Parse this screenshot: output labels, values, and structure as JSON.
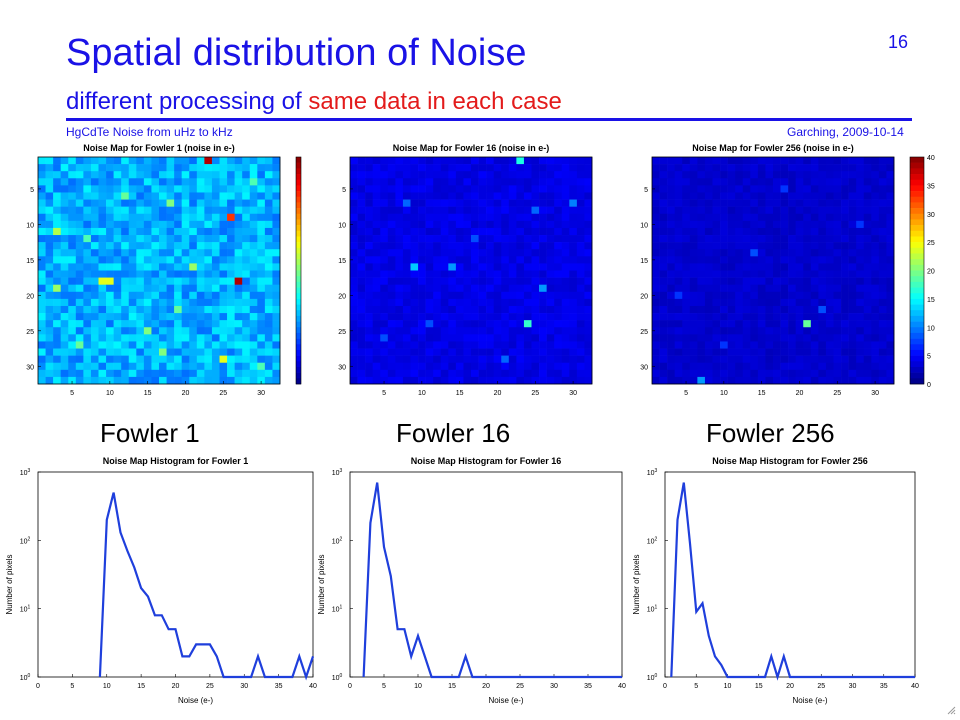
{
  "slide": {
    "title": "Spatial distribution of Noise",
    "subtitle_prefix": "different processing of ",
    "subtitle_highlight": "same data in each case",
    "footer_left": "HgCdTe Noise from uHz to kHz",
    "footer_right": "Garching, 2009-10-14",
    "page_number": "16",
    "panel_labels": [
      "Fowler 1",
      "Fowler 16",
      "Fowler 256"
    ],
    "colors": {
      "title": "#1a12e6",
      "highlight": "#e31b1b",
      "histogram_line": "#1f3fdc"
    }
  },
  "chart_data": [
    {
      "type": "heatmap",
      "title": "Noise Map for Fowler 1 (noise in e-)",
      "grid_size": [
        32,
        32
      ],
      "ytick_labels": [
        "5",
        "10",
        "15",
        "20",
        "25",
        "30"
      ],
      "xtick_labels": [
        "5",
        "10",
        "15",
        "20",
        "25",
        "30"
      ],
      "background_value": 12,
      "hot_pixels": [
        {
          "col": 23,
          "row": 1,
          "value": 38
        },
        {
          "col": 26,
          "row": 9,
          "value": 33
        },
        {
          "col": 27,
          "row": 18,
          "value": 38
        },
        {
          "col": 9,
          "row": 18,
          "value": 24
        },
        {
          "col": 10,
          "row": 18,
          "value": 24
        },
        {
          "col": 3,
          "row": 11,
          "value": 22
        },
        {
          "col": 3,
          "row": 19,
          "value": 21
        },
        {
          "col": 21,
          "row": 16,
          "value": 21
        },
        {
          "col": 25,
          "row": 29,
          "value": 24
        },
        {
          "col": 18,
          "row": 7,
          "value": 20
        },
        {
          "col": 15,
          "row": 25,
          "value": 20
        },
        {
          "col": 12,
          "row": 6,
          "value": 19
        },
        {
          "col": 29,
          "row": 4,
          "value": 18
        },
        {
          "col": 6,
          "row": 27,
          "value": 19
        },
        {
          "col": 30,
          "row": 30,
          "value": 18
        },
        {
          "col": 17,
          "row": 28,
          "value": 20
        },
        {
          "col": 7,
          "row": 12,
          "value": 18
        },
        {
          "col": 19,
          "row": 22,
          "value": 19
        }
      ],
      "colorbar_range": [
        0,
        40
      ]
    },
    {
      "type": "heatmap",
      "title": "Noise Map for Fowler 16 (noise in e-)",
      "grid_size": [
        32,
        32
      ],
      "ytick_labels": [
        "5",
        "10",
        "15",
        "20",
        "25",
        "30"
      ],
      "xtick_labels": [
        "5",
        "10",
        "15",
        "20",
        "25",
        "30"
      ],
      "background_value": 4,
      "hot_pixels": [
        {
          "col": 23,
          "row": 1,
          "value": 16
        },
        {
          "col": 9,
          "row": 16,
          "value": 13
        },
        {
          "col": 24,
          "row": 24,
          "value": 17
        },
        {
          "col": 26,
          "row": 19,
          "value": 11
        },
        {
          "col": 14,
          "row": 16,
          "value": 11
        },
        {
          "col": 30,
          "row": 7,
          "value": 10
        },
        {
          "col": 8,
          "row": 7,
          "value": 9
        },
        {
          "col": 21,
          "row": 29,
          "value": 9
        },
        {
          "col": 5,
          "row": 26,
          "value": 8
        },
        {
          "col": 17,
          "row": 12,
          "value": 8
        },
        {
          "col": 25,
          "row": 8,
          "value": 9
        },
        {
          "col": 11,
          "row": 24,
          "value": 8
        }
      ],
      "colorbar_range": [
        0,
        40
      ]
    },
    {
      "type": "heatmap",
      "title": "Noise Map for Fowler 256 (noise in e-)",
      "grid_size": [
        32,
        32
      ],
      "ytick_labels": [
        "5",
        "10",
        "15",
        "20",
        "25",
        "30"
      ],
      "xtick_labels": [
        "5",
        "10",
        "15",
        "20",
        "25",
        "30"
      ],
      "background_value": 3,
      "hot_pixels": [
        {
          "col": 21,
          "row": 24,
          "value": 19
        },
        {
          "col": 7,
          "row": 32,
          "value": 11
        },
        {
          "col": 23,
          "row": 22,
          "value": 8
        },
        {
          "col": 14,
          "row": 14,
          "value": 8
        },
        {
          "col": 28,
          "row": 10,
          "value": 7
        },
        {
          "col": 4,
          "row": 20,
          "value": 7
        },
        {
          "col": 18,
          "row": 5,
          "value": 7
        },
        {
          "col": 10,
          "row": 27,
          "value": 7
        }
      ],
      "colorbar_ticks": [
        "0",
        "5",
        "10",
        "15",
        "20",
        "25",
        "30",
        "35",
        "40"
      ],
      "colorbar_range": [
        0,
        40
      ]
    },
    {
      "type": "line",
      "title": "Noise Map Histogram for Fowler 1",
      "xlabel": "Noise (e-)",
      "ylabel": "Number of pixels",
      "xlim": [
        0,
        40
      ],
      "ylim": [
        1,
        1000
      ],
      "yscale": "log",
      "xtick_labels": [
        "0",
        "5",
        "10",
        "15",
        "20",
        "25",
        "30",
        "35",
        "40"
      ],
      "ytick_labels": [
        "10^0",
        "10^1",
        "10^2",
        "10^3"
      ],
      "x": [
        9,
        10,
        11,
        12,
        13,
        14,
        15,
        16,
        17,
        18,
        19,
        20,
        21,
        22,
        23,
        24,
        25,
        26,
        27,
        28,
        29,
        30,
        31,
        32,
        33,
        34,
        35,
        36,
        37,
        38,
        39,
        40
      ],
      "values": [
        1,
        200,
        500,
        130,
        70,
        40,
        20,
        15,
        8,
        8,
        5,
        5,
        2,
        2,
        3,
        3,
        3,
        2,
        1,
        1,
        1,
        1,
        1,
        2,
        1,
        1,
        1,
        1,
        1,
        2,
        1,
        2
      ]
    },
    {
      "type": "line",
      "title": "Noise Map Histogram for Fowler 16",
      "xlabel": "Noise (e-)",
      "ylabel": "Number of pixels",
      "xlim": [
        0,
        40
      ],
      "ylim": [
        1,
        1000
      ],
      "yscale": "log",
      "xtick_labels": [
        "0",
        "5",
        "10",
        "15",
        "20",
        "25",
        "30",
        "35",
        "40"
      ],
      "ytick_labels": [
        "10^0",
        "10^1",
        "10^2",
        "10^3"
      ],
      "x": [
        2,
        3,
        4,
        5,
        6,
        7,
        8,
        9,
        10,
        11,
        12,
        13,
        14,
        15,
        16,
        17,
        18,
        19,
        20,
        40
      ],
      "values": [
        1,
        180,
        700,
        80,
        30,
        5,
        5,
        2,
        4,
        2,
        1,
        1,
        1,
        1,
        1,
        2,
        1,
        1,
        1,
        1
      ]
    },
    {
      "type": "line",
      "title": "Noise Map Histogram for Fowler 256",
      "xlabel": "Noise (e-)",
      "ylabel": "Number of pixels",
      "xlim": [
        0,
        40
      ],
      "ylim": [
        1,
        1000
      ],
      "yscale": "log",
      "xtick_labels": [
        "0",
        "5",
        "10",
        "15",
        "20",
        "25",
        "30",
        "35",
        "40"
      ],
      "ytick_labels": [
        "10^0",
        "10^1",
        "10^2",
        "10^3"
      ],
      "x": [
        1,
        2,
        3,
        4,
        5,
        6,
        7,
        8,
        9,
        10,
        15,
        16,
        17,
        18,
        19,
        20,
        40
      ],
      "values": [
        1,
        200,
        700,
        90,
        9,
        12,
        4,
        2,
        1.5,
        1,
        1,
        1,
        2,
        1,
        2,
        1,
        1
      ]
    }
  ]
}
